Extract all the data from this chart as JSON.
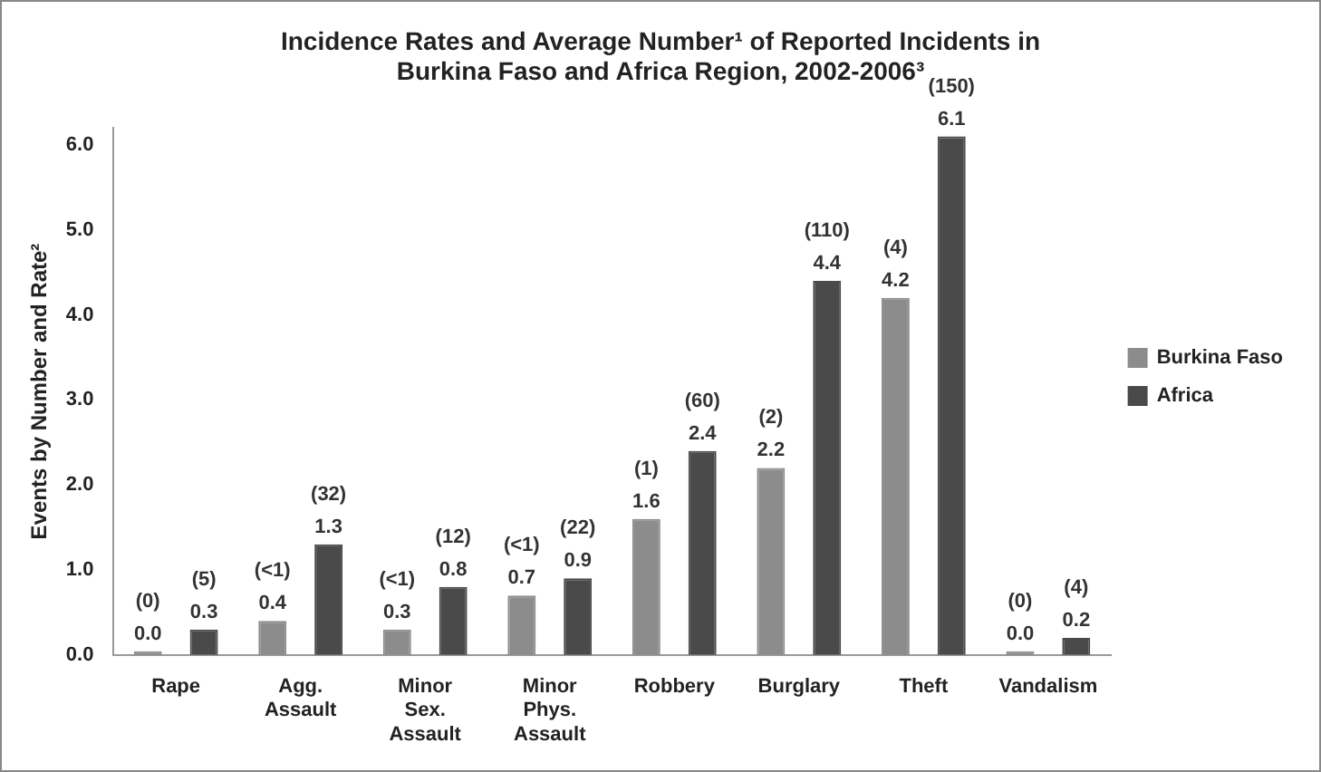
{
  "chart_data": {
    "type": "bar",
    "title": "Incidence Rates and Average Number¹ of Reported Incidents in\nBurkina Faso and Africa Region, 2002-2006³",
    "ylabel": "Events by Number and Rate²",
    "categories": [
      "Rape",
      "Agg.\nAssault",
      "Minor\nSex.\nAssault",
      "Minor\nPhys.\nAssault",
      "Robbery",
      "Burglary",
      "Theft",
      "Vandalism"
    ],
    "series": [
      {
        "name": "Burkina Faso",
        "color": "#8c8c8c",
        "values": [
          0.0,
          0.4,
          0.3,
          0.7,
          1.6,
          2.2,
          4.2,
          0.0
        ],
        "value_labels": [
          "(0)\n0.0",
          "(<1)\n0.4",
          "(<1)\n0.3",
          "(<1)\n0.7",
          "(1)\n1.6",
          "(2)\n2.2",
          "(4)\n4.2",
          "(0)\n0.0"
        ]
      },
      {
        "name": "Africa",
        "color": "#4a4a4a",
        "values": [
          0.3,
          1.3,
          0.8,
          0.9,
          2.4,
          4.4,
          6.1,
          0.2
        ],
        "value_labels": [
          "(5)\n0.3",
          "(32)\n1.3",
          "(12)\n0.8",
          "(22)\n0.9",
          "(60)\n2.4",
          "(110)\n4.4",
          "(150)\n6.1",
          "(4)\n0.2"
        ]
      }
    ],
    "ylim": [
      0,
      6.2
    ],
    "yticks": [
      {
        "value": 0,
        "label": "0.0"
      },
      {
        "value": 1,
        "label": "1.0"
      },
      {
        "value": 2,
        "label": "2.0"
      },
      {
        "value": 3,
        "label": "3.0"
      },
      {
        "value": 4,
        "label": "4.0"
      },
      {
        "value": 5,
        "label": "5.0"
      },
      {
        "value": 6,
        "label": "6.0"
      }
    ],
    "grid": false,
    "legend": "right"
  }
}
